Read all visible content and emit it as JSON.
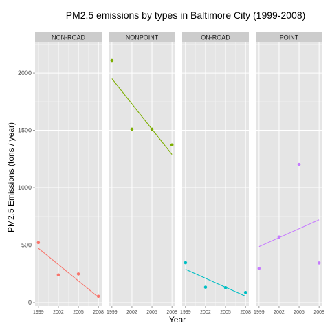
{
  "chart_data": {
    "type": "scatter",
    "title": "PM2.5 emissions by types in Baltimore City (1999-2008)",
    "xlabel": "Year",
    "ylabel": "PM2.5 Emissions (tons / year)",
    "x_ticks": [
      1999,
      2002,
      2005,
      2008
    ],
    "y_ticks": [
      0,
      500,
      1000,
      1500,
      2000
    ],
    "xlim": [
      1998.5,
      2008.5
    ],
    "ylim": [
      -30,
      2270
    ],
    "grid": true,
    "facets": [
      {
        "name": "NON-ROAD",
        "color": "#F8766D",
        "x": [
          1999,
          2002,
          2005,
          2008
        ],
        "y": [
          522,
          241,
          249,
          55
        ],
        "trend": {
          "x": [
            1999,
            2008
          ],
          "y": [
            473,
            47
          ]
        }
      },
      {
        "name": "NONPOINT",
        "color": "#7CAE00",
        "x": [
          1999,
          2002,
          2005,
          2008
        ],
        "y": [
          2108,
          1510,
          1510,
          1373
        ],
        "trend": {
          "x": [
            1999,
            2008
          ],
          "y": [
            1950,
            1290
          ]
        }
      },
      {
        "name": "ON-ROAD",
        "color": "#00BFC4",
        "x": [
          1999,
          2002,
          2005,
          2008
        ],
        "y": [
          347,
          134,
          130,
          88
        ],
        "trend": {
          "x": [
            1999,
            2008
          ],
          "y": [
            290,
            55
          ]
        }
      },
      {
        "name": "POINT",
        "color": "#C77CFF",
        "x": [
          1999,
          2002,
          2005,
          2008
        ],
        "y": [
          297,
          570,
          1203,
          345
        ],
        "trend": {
          "x": [
            1999,
            2008
          ],
          "y": [
            487,
            720
          ]
        }
      }
    ]
  }
}
